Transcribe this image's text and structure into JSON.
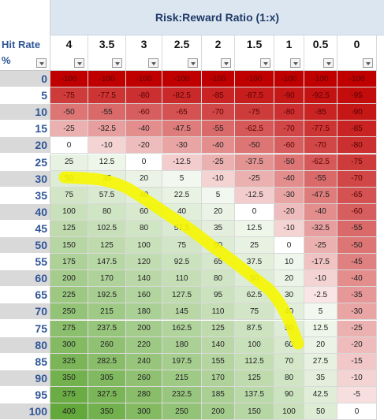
{
  "title": "Risk:Reward Ratio (1:x)",
  "hit_rate_label_line1": "Hit Rate",
  "hit_rate_label_line2": "%",
  "columns": [
    "4",
    "3.5",
    "3",
    "2.5",
    "2",
    "1.5",
    "1",
    "0.5",
    "0"
  ],
  "rows": [
    {
      "hit": "0",
      "values": [
        "-100",
        "-100",
        "-100",
        "-100",
        "-100",
        "-100",
        "-100",
        "-100",
        "-100"
      ]
    },
    {
      "hit": "5",
      "values": [
        "-75",
        "-77.5",
        "-80",
        "-82.5",
        "-85",
        "-87.5",
        "-90",
        "-92.5",
        "-95"
      ]
    },
    {
      "hit": "10",
      "values": [
        "-50",
        "-55",
        "-60",
        "-65",
        "-70",
        "-75",
        "-80",
        "-85",
        "-90"
      ]
    },
    {
      "hit": "15",
      "values": [
        "-25",
        "-32.5",
        "-40",
        "-47.5",
        "-55",
        "-62.5",
        "-70",
        "-77.5",
        "-85"
      ]
    },
    {
      "hit": "20",
      "values": [
        "0",
        "-10",
        "-20",
        "-30",
        "-40",
        "-50",
        "-60",
        "-70",
        "-80"
      ]
    },
    {
      "hit": "25",
      "values": [
        "25",
        "12.5",
        "0",
        "-12.5",
        "-25",
        "-37.5",
        "-50",
        "-62.5",
        "-75"
      ]
    },
    {
      "hit": "30",
      "values": [
        "50",
        "35",
        "20",
        "5",
        "-10",
        "-25",
        "-40",
        "-55",
        "-70"
      ]
    },
    {
      "hit": "35",
      "values": [
        "75",
        "57.5",
        "40",
        "22.5",
        "5",
        "-12.5",
        "-30",
        "-47.5",
        "-65"
      ]
    },
    {
      "hit": "40",
      "values": [
        "100",
        "80",
        "60",
        "40",
        "20",
        "0",
        "-20",
        "-40",
        "-60"
      ]
    },
    {
      "hit": "45",
      "values": [
        "125",
        "102.5",
        "80",
        "57.5",
        "35",
        "12.5",
        "-10",
        "-32.5",
        "-55"
      ]
    },
    {
      "hit": "50",
      "values": [
        "150",
        "125",
        "100",
        "75",
        "50",
        "25",
        "0",
        "-25",
        "-50"
      ]
    },
    {
      "hit": "55",
      "values": [
        "175",
        "147.5",
        "120",
        "92.5",
        "65",
        "37.5",
        "10",
        "-17.5",
        "-45"
      ]
    },
    {
      "hit": "60",
      "values": [
        "200",
        "170",
        "140",
        "110",
        "80",
        "50",
        "20",
        "-10",
        "-40"
      ]
    },
    {
      "hit": "65",
      "values": [
        "225",
        "192.5",
        "160",
        "127.5",
        "95",
        "62.5",
        "30",
        "-2.5",
        "-35"
      ]
    },
    {
      "hit": "70",
      "values": [
        "250",
        "215",
        "180",
        "145",
        "110",
        "75",
        "40",
        "5",
        "-30"
      ]
    },
    {
      "hit": "75",
      "values": [
        "275",
        "237.5",
        "200",
        "162.5",
        "125",
        "87.5",
        "50",
        "12.5",
        "-25"
      ]
    },
    {
      "hit": "80",
      "values": [
        "300",
        "260",
        "220",
        "180",
        "140",
        "100",
        "60",
        "20",
        "-20"
      ]
    },
    {
      "hit": "85",
      "values": [
        "325",
        "282.5",
        "240",
        "197.5",
        "155",
        "112.5",
        "70",
        "27.5",
        "-15"
      ]
    },
    {
      "hit": "90",
      "values": [
        "350",
        "305",
        "260",
        "215",
        "170",
        "125",
        "80",
        "35",
        "-10"
      ]
    },
    {
      "hit": "95",
      "values": [
        "375",
        "327.5",
        "280",
        "232.5",
        "185",
        "137.5",
        "90",
        "42.5",
        "-5"
      ]
    },
    {
      "hit": "100",
      "values": [
        "400",
        "350",
        "300",
        "250",
        "200",
        "150",
        "100",
        "50",
        "0"
      ]
    }
  ],
  "colors": {
    "negative_max": "#c00000",
    "positive_max": "#63a83a",
    "neutral": "#ffffff",
    "header_band": "#dce6f1",
    "row_header_band": "#d9d9d9",
    "highlight_stroke": "#f6f600"
  },
  "icons": {
    "column_filter": "dropdown-arrow-icon"
  }
}
